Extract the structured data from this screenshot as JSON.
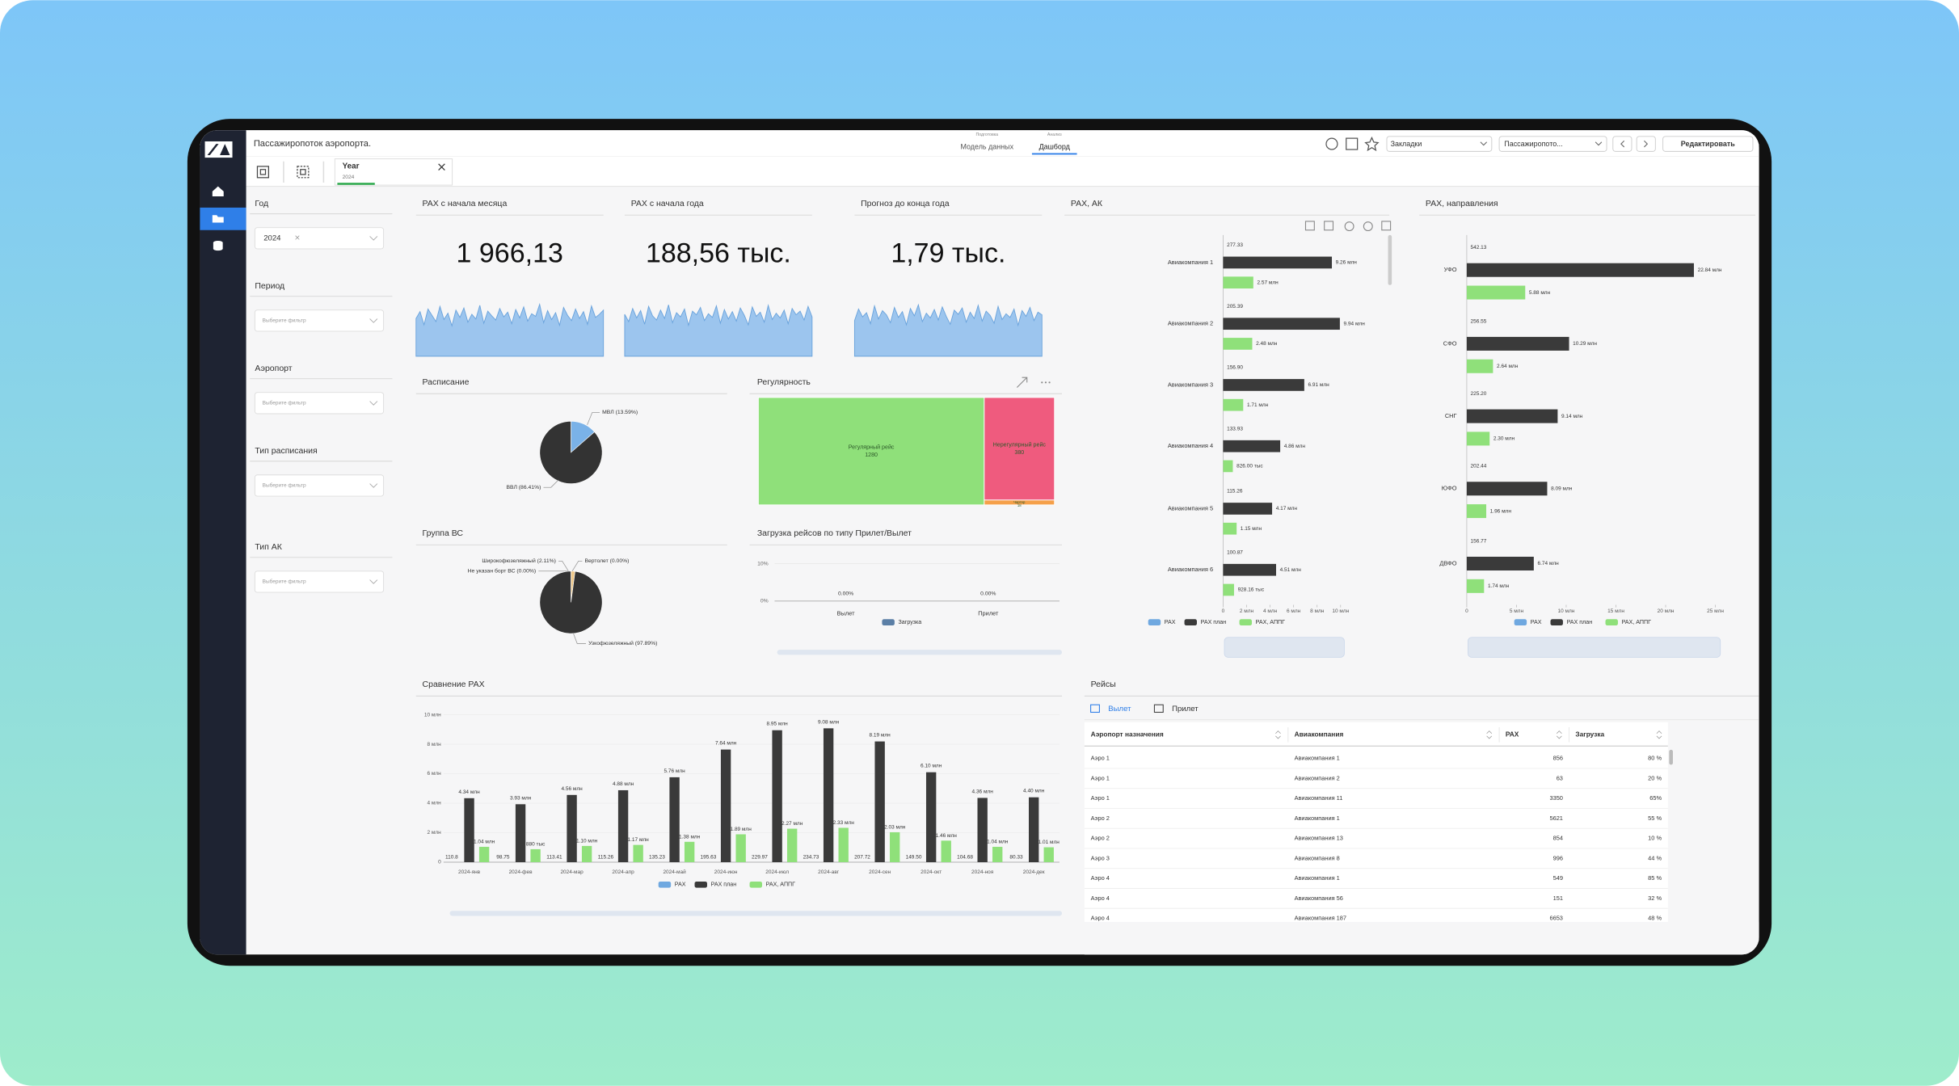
{
  "app": {
    "title": "Пассажиропоток аэропорта.",
    "nav": [
      {
        "hint": "Подготовка",
        "label": "Модель данных"
      },
      {
        "hint": "Анализ",
        "label": "Дашборд"
      }
    ],
    "bookmarks": "Закладки",
    "sheet": "Пассажиропото...",
    "edit": "Редактировать",
    "chip": {
      "label": "Year",
      "value": "2024"
    }
  },
  "filters": [
    {
      "label": "Год",
      "value": "2024"
    },
    {
      "label": "Период",
      "placeholder": "Выберите фильтр"
    },
    {
      "label": "Аэропорт",
      "placeholder": "Выберите фильтр"
    },
    {
      "label": "Тип расписания",
      "placeholder": "Выберите фильтр"
    },
    {
      "label": "Тип АК",
      "placeholder": "Выберите фильтр"
    }
  ],
  "kpis": [
    {
      "title": "PAX с начала месяца",
      "value": "1 966,13",
      "spark": [
        72,
        85,
        60,
        90,
        78,
        66,
        95,
        70,
        82,
        58,
        88,
        74,
        92,
        65,
        80,
        71,
        97,
        63,
        86,
        77,
        69,
        91,
        75,
        84,
        62,
        89,
        73,
        94,
        67,
        81,
        76,
        99,
        64,
        87,
        70,
        83,
        59,
        93,
        78,
        68,
        90,
        72,
        85,
        61,
        96,
        74,
        80,
        88
      ]
    },
    {
      "title": "PAX с начала года",
      "value": "188,56 тыс.",
      "spark": [
        80,
        66,
        91,
        73,
        87,
        61,
        95,
        77,
        69,
        88,
        72,
        98,
        64,
        83,
        75,
        90,
        59,
        86,
        79,
        93,
        68,
        81,
        74,
        96,
        63,
        89,
        71,
        85,
        67,
        92,
        78,
        60,
        94,
        76,
        84,
        65,
        97,
        70,
        82,
        73,
        88,
        62,
        91,
        79,
        86,
        69,
        95,
        75
      ]
    },
    {
      "title": "Прогноз до конца года",
      "value": "1,79 тыс.",
      "spark": [
        68,
        90,
        75,
        83,
        62,
        96,
        71,
        87,
        79,
        64,
        93,
        74,
        85,
        60,
        91,
        77,
        98,
        66,
        82,
        73,
        89,
        69,
        94,
        76,
        61,
        88,
        80,
        92,
        65,
        84,
        72,
        97,
        67,
        86,
        78,
        63,
        95,
        70,
        81,
        74,
        90,
        59,
        87,
        76,
        93,
        68,
        84,
        79
      ]
    }
  ],
  "schedule": {
    "type": "pie",
    "title": "Расписание",
    "categories": [
      "МВЛ",
      "ВВЛ"
    ],
    "values": [
      13.59,
      86.41
    ],
    "value_labels": [
      "МВЛ (13.59%)",
      "ВВЛ (86.41%)"
    ],
    "colors": [
      "#7ab2e8",
      "#333333"
    ]
  },
  "regularity": {
    "type": "treemap",
    "title": "Регулярность",
    "categories": [
      "Регулярный рейс",
      "Нерегулярный рейс",
      "Чартер"
    ],
    "values": [
      1280,
      380,
      18
    ],
    "colors": [
      "#8fe07a",
      "#ef5b7e",
      "#f5a04a"
    ]
  },
  "aircraft": {
    "type": "pie",
    "title": "Группа ВС",
    "categories": [
      "Широкофюзеляжный",
      "Вертолет",
      "Не указан борт ВС",
      "Узкофюзеляжный"
    ],
    "values": [
      2.11,
      0,
      0,
      97.89
    ],
    "value_labels": [
      "Широкофюзеляжный (2.11%)",
      "Вертолет (0.00%)",
      "Не указан борт ВС (0.00%)",
      "Узкофюзеляжный (97.89%)"
    ],
    "colors": [
      "#f0c98a",
      "#aaaaaa",
      "#dddddd",
      "#333333"
    ]
  },
  "load": {
    "type": "bar",
    "title": "Загрузка рейсов по типу Прилет/Вылет",
    "categories": [
      "Вылет",
      "Прилет"
    ],
    "series": [
      {
        "name": "Загрузка",
        "color": "#5b7fa6",
        "values": [
          0,
          0
        ],
        "value_labels": [
          "0.00%",
          "0.00%"
        ]
      }
    ],
    "ylim": [
      0,
      10
    ],
    "yticks": [
      {
        "value": 0,
        "label": "0%"
      },
      {
        "value": 10,
        "label": "10%"
      }
    ]
  },
  "pax_ak": {
    "type": "hbar",
    "title": "PAX, АК",
    "categories": [
      "Авиакомпания 1",
      "Авиакомпания 2",
      "Авиакомпания 3",
      "Авиакомпания 4",
      "Авиакомпания 5",
      "Авиакомпания 6"
    ],
    "series": [
      {
        "name": "PAX",
        "color": "#6fa8e0",
        "values": [
          277.33,
          205.39,
          156.9,
          133.93,
          115.26,
          100.87
        ],
        "value_labels": [
          "277.33",
          "205.39",
          "156.90",
          "133.93",
          "115.26",
          "100.87"
        ]
      },
      {
        "name": "PAX план",
        "color": "#3a3a3a",
        "values": [
          9260000,
          9940000,
          6910000,
          4860000,
          4170000,
          4510000
        ],
        "value_labels": [
          "9.26 млн",
          "9.94 млн",
          "6.91 млн",
          "4.86 млн",
          "4.17 млн",
          "4.51 млн"
        ]
      },
      {
        "name": "PAX, АППГ",
        "color": "#8fe07a",
        "values": [
          2570000,
          2480000,
          1710000,
          826000,
          1150000,
          928160
        ],
        "value_labels": [
          "2.57 млн",
          "2.48 млн",
          "1.71 млн",
          "826.00 тыс",
          "1.15 млн",
          "928.16 тыс"
        ]
      }
    ],
    "xlim": [
      0,
      10000000
    ],
    "xticks": [
      0,
      {
        "value": 2000000,
        "label": "2 млн"
      },
      {
        "value": 4000000,
        "label": "4 млн"
      },
      {
        "value": 6000000,
        "label": "6 млн"
      },
      {
        "value": 8000000,
        "label": "8 млн"
      },
      {
        "value": 10000000,
        "label": "10 млн"
      }
    ]
  },
  "pax_dir": {
    "type": "hbar",
    "title": "PAX, направления",
    "categories": [
      "УФО",
      "СФО",
      "СНГ",
      "ЮФО",
      "ДВФО"
    ],
    "series": [
      {
        "name": "PAX",
        "color": "#6fa8e0",
        "values": [
          542.13,
          256.55,
          225.2,
          202.44,
          156.77
        ],
        "value_labels": [
          "542.13",
          "256.55",
          "225.20",
          "202.44",
          "156.77"
        ]
      },
      {
        "name": "PAX план",
        "color": "#3a3a3a",
        "values": [
          22840000,
          10290000,
          9140000,
          8090000,
          6740000
        ],
        "value_labels": [
          "22.84 млн",
          "10.29 млн",
          "9.14 млн",
          "8.09 млн",
          "6.74 млн"
        ]
      },
      {
        "name": "PAX, АППГ",
        "color": "#8fe07a",
        "values": [
          5880000,
          2640000,
          2300000,
          1960000,
          1740000
        ],
        "value_labels": [
          "5.88 млн",
          "2.64 млн",
          "2.30 млн",
          "1.96 млн",
          "1.74 млн"
        ]
      }
    ],
    "xlim": [
      0,
      25000000
    ],
    "xticks": [
      0,
      {
        "value": 5000000,
        "label": "5 млн"
      },
      {
        "value": 10000000,
        "label": "10 млн"
      },
      {
        "value": 15000000,
        "label": "15 млн"
      },
      {
        "value": 20000000,
        "label": "20 млн"
      },
      {
        "value": 25000000,
        "label": "25 млн"
      }
    ]
  },
  "pax_compare": {
    "type": "bar",
    "title": "Сравнение PAX",
    "categories": [
      "2024-янв",
      "2024-фев",
      "2024-мар",
      "2024-апр",
      "2024-май",
      "2024-июн",
      "2024-июл",
      "2024-авг",
      "2024-сен",
      "2024-окт",
      "2024-ноя",
      "2024-дек"
    ],
    "series": [
      {
        "name": "PAX",
        "color": "#6fa8e0",
        "values": [
          110.8,
          98.75,
          113.41,
          115.26,
          135.23,
          195.63,
          229.97,
          234.73,
          207.72,
          149.5,
          104.68,
          80.33
        ],
        "value_labels": [
          "110.8",
          "98.75",
          "113.41",
          "115.26",
          "135.23",
          "195.63",
          "229.97",
          "234.73",
          "207.72",
          "149.50",
          "104.68",
          "80.33"
        ]
      },
      {
        "name": "PAX план",
        "color": "#3a3a3a",
        "values": [
          4340000,
          3930000,
          4560000,
          4880000,
          5760000,
          7640000,
          8950000,
          9080000,
          8190000,
          6100000,
          4360000,
          4400000
        ],
        "value_labels": [
          "4.34 млн",
          "3.93 млн",
          "4.56 млн",
          "4.88 млн",
          "5.76 млн",
          "7.64 млн",
          "8.95 млн",
          "9.08 млн",
          "8.19 млн",
          "6.10 млн",
          "4.36 млн",
          "4.40 млн"
        ]
      },
      {
        "name": "PAX, АППГ",
        "color": "#8fe07a",
        "values": [
          1040000,
          880000,
          1100000,
          1170000,
          1380000,
          1890000,
          2270000,
          2330000,
          2030000,
          1460000,
          1040000,
          1010000
        ],
        "value_labels": [
          "1.04 млн",
          "880 тыс",
          "1.10 млн",
          "1.17 млн",
          "1.38 млн",
          "1.89 млн",
          "2.27 млн",
          "2.33 млн",
          "2.03 млн",
          "1.46 млн",
          "1.04 млн",
          "1.01 млн"
        ]
      }
    ],
    "ylim": [
      0,
      10000000
    ],
    "yticks": [
      0,
      {
        "value": 2000000,
        "label": "2 млн"
      },
      {
        "value": 4000000,
        "label": "4 млн"
      },
      {
        "value": 6000000,
        "label": "6 млн"
      },
      {
        "value": 8000000,
        "label": "8 млн"
      },
      {
        "value": 10000000,
        "label": "10 млн"
      }
    ]
  },
  "table": {
    "title": "Рейсы",
    "tabs": [
      "Вылет",
      "Прилет"
    ],
    "columns": [
      "Аэропорт назначения",
      "Авиакомпания",
      "PAX",
      "Загрузка"
    ],
    "rows": [
      [
        "Аэро 1",
        "Авиакомпания 1",
        "856",
        "80 %"
      ],
      [
        "Аэро 1",
        "Авиакомпания 2",
        "63",
        "20 %"
      ],
      [
        "Аэро 1",
        "Авиакомпания 11",
        "3350",
        "65%"
      ],
      [
        "Аэро 2",
        "Авиакомпания 1",
        "5621",
        "55 %"
      ],
      [
        "Аэро 2",
        "Авиакомпания 13",
        "854",
        "10 %"
      ],
      [
        "Аэро 3",
        "Авиакомпания 8",
        "996",
        "44 %"
      ],
      [
        "Аэро 4",
        "Авиакомпания 1",
        "549",
        "85 %"
      ],
      [
        "Аэро 4",
        "Авиакомпания 56",
        "151",
        "32 %"
      ],
      [
        "Аэро 4",
        "Авиакомпания 187",
        "6653",
        "48 %"
      ]
    ]
  }
}
